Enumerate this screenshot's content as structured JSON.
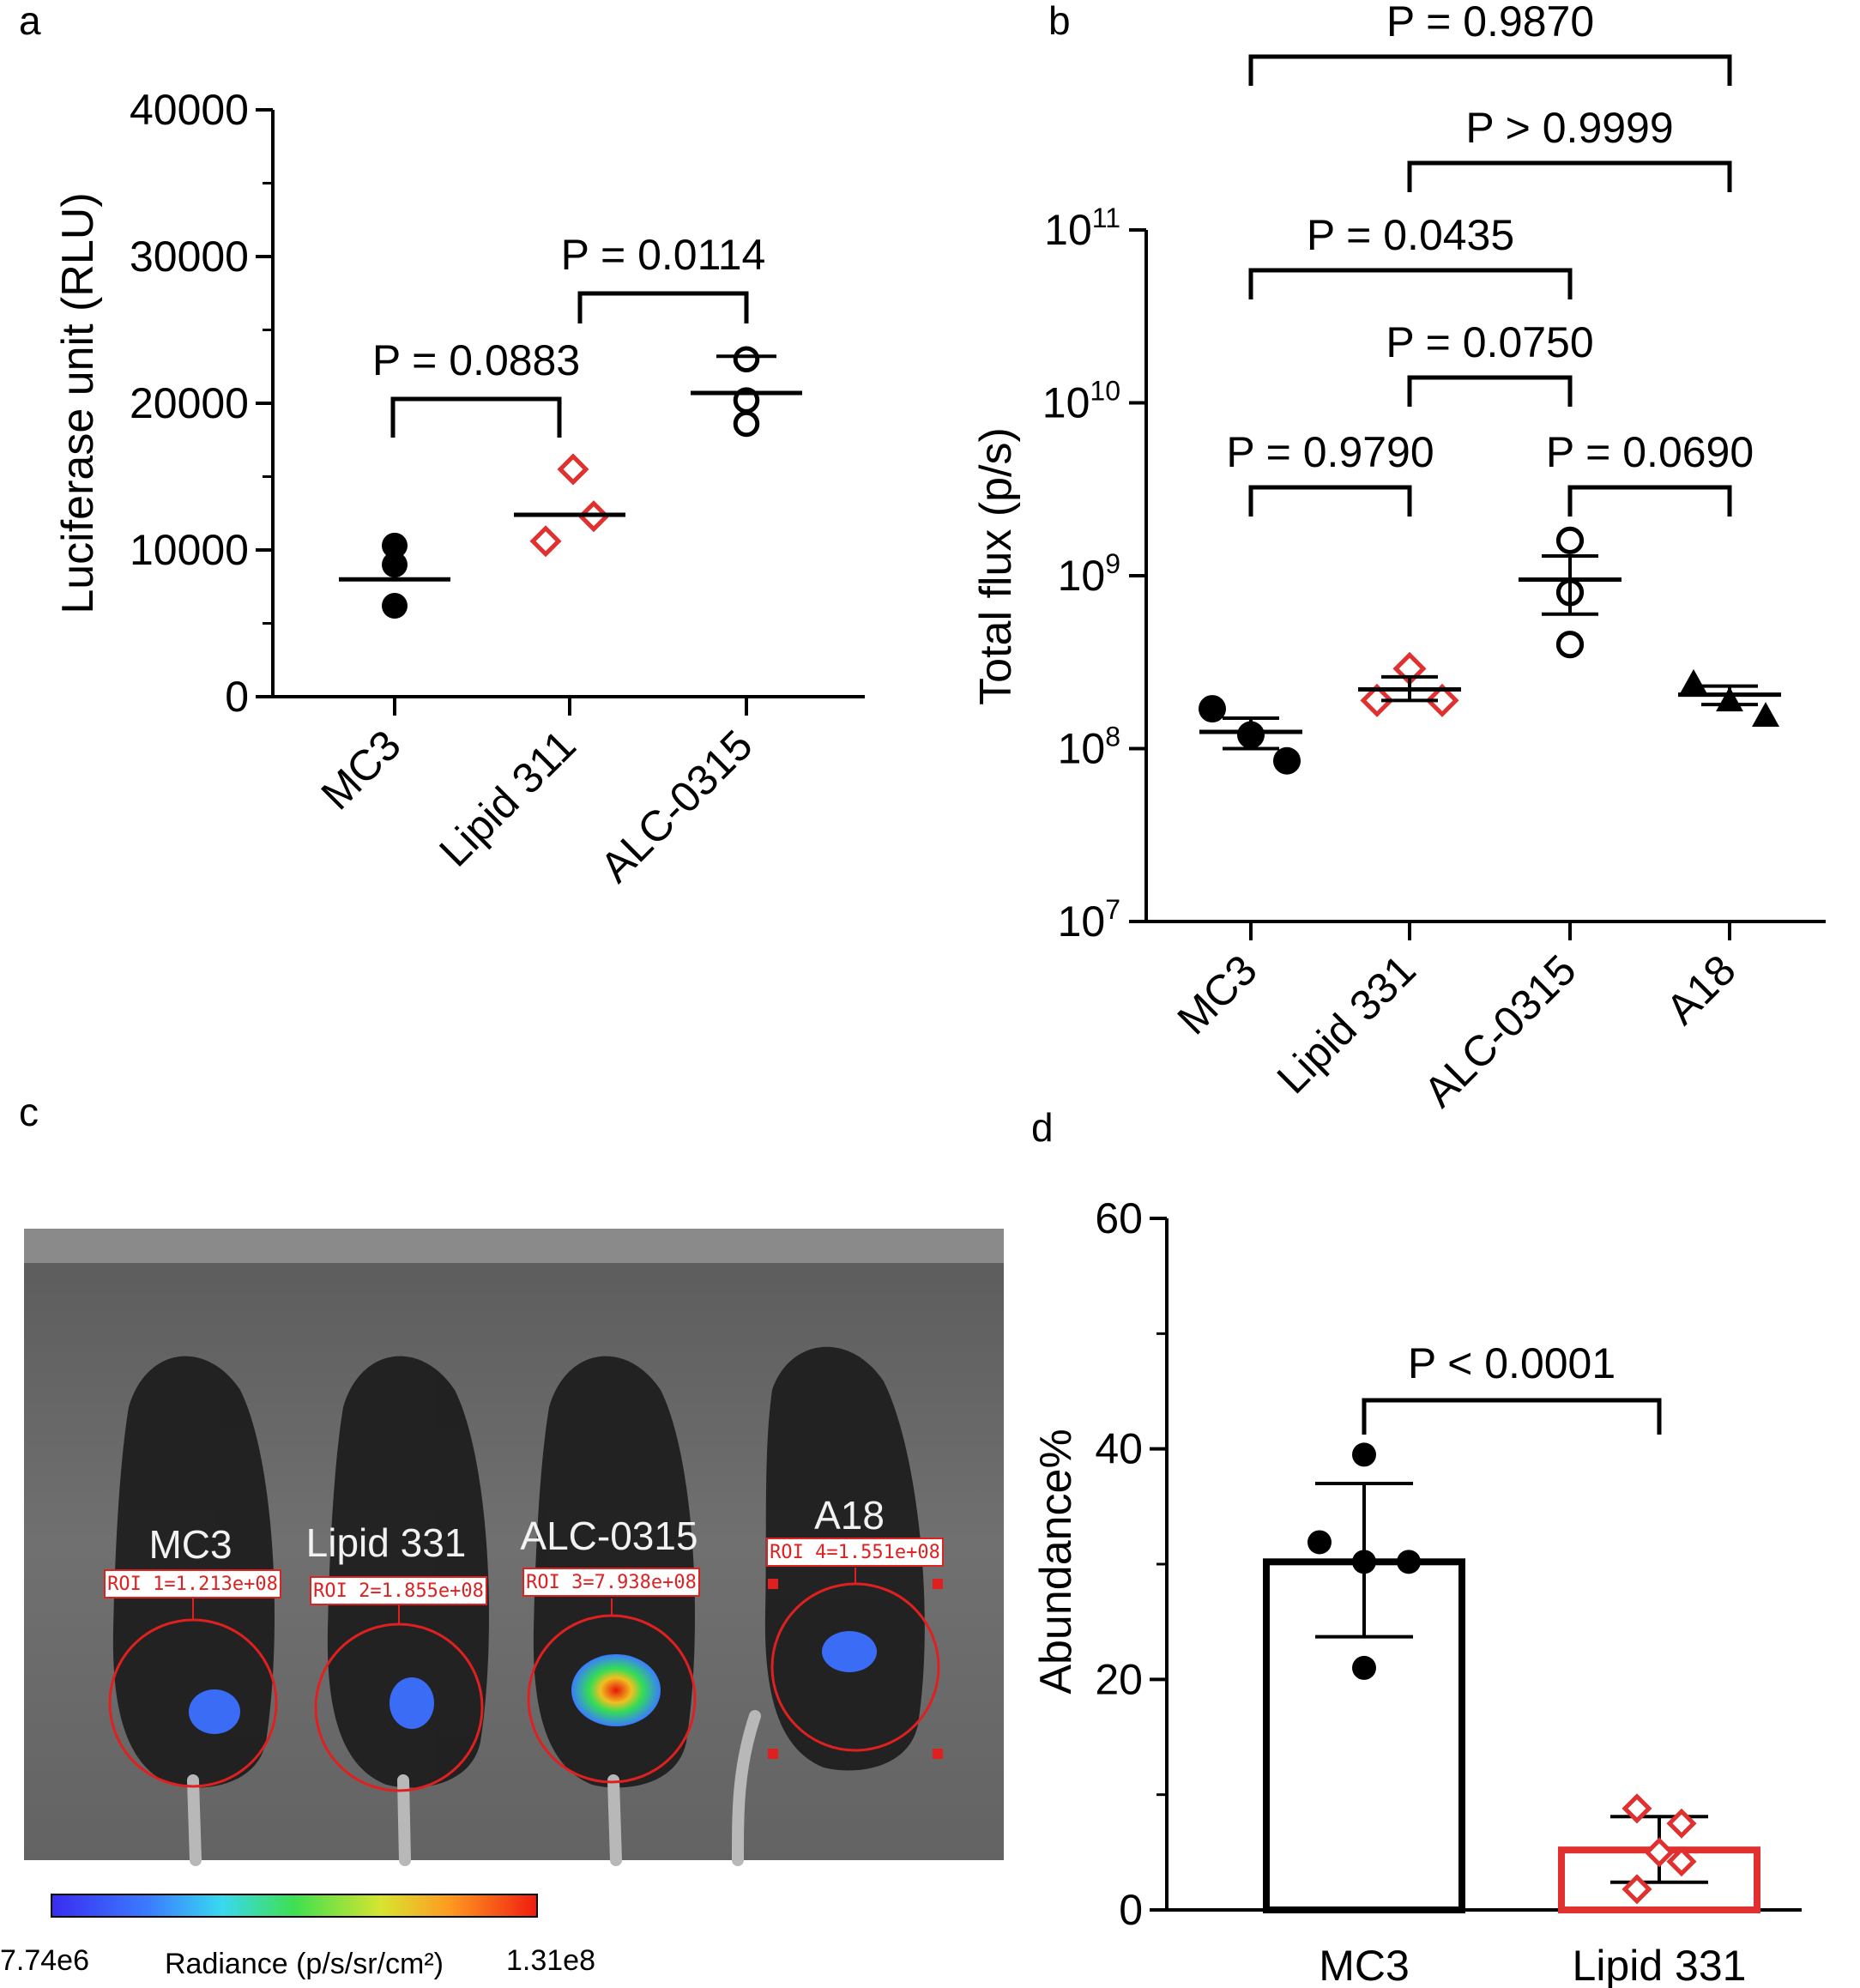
{
  "panels": {
    "a": "a",
    "b": "b",
    "c": "c",
    "d": "d"
  },
  "chart_data": [
    {
      "panel": "a",
      "type": "scatter",
      "ylabel": "Luciferase unit (RLU)",
      "xlabel": "",
      "ylim": [
        0,
        40000
      ],
      "yticks": [
        0,
        10000,
        20000,
        30000,
        40000
      ],
      "yticklabels": [
        "0",
        "10000",
        "20000",
        "30000",
        "40000"
      ],
      "categories": [
        "MC3",
        "Lipid 311",
        "ALC-0315"
      ],
      "series": [
        {
          "category": "MC3",
          "marker": "filled-circle",
          "color": "#000000",
          "points": [
            10300,
            9000,
            6200
          ],
          "mean": 8000
        },
        {
          "category": "Lipid 311",
          "marker": "open-diamond",
          "color": "#e03030",
          "points": [
            15500,
            12300,
            10600
          ],
          "mean": 12400
        },
        {
          "category": "ALC-0315",
          "marker": "open-circle",
          "color": "#000000",
          "points": [
            23000,
            20200,
            18600
          ],
          "mean": 20700
        }
      ],
      "comparisons": [
        {
          "from": "MC3",
          "to": "Lipid 311",
          "label": "P = 0.0883"
        },
        {
          "from": "Lipid 311",
          "to": "ALC-0315",
          "label": "P = 0.0114"
        }
      ]
    },
    {
      "panel": "b",
      "type": "scatter",
      "scale": "log",
      "ylabel": "Total flux (p/s)",
      "xlabel": "",
      "ylim": [
        10000000.0,
        100000000000.0
      ],
      "yticks": [
        {
          "base": "10",
          "exp": "7",
          "value": 10000000.0
        },
        {
          "base": "10",
          "exp": "8",
          "value": 100000000.0
        },
        {
          "base": "10",
          "exp": "9",
          "value": 1000000000.0
        },
        {
          "base": "10",
          "exp": "10",
          "value": 10000000000.0
        },
        {
          "base": "10",
          "exp": "11",
          "value": 100000000000.0
        }
      ],
      "categories": [
        "MC3",
        "Lipid 331",
        "ALC-0315",
        "A18"
      ],
      "series": [
        {
          "category": "MC3",
          "marker": "filled-circle",
          "color": "#000000",
          "points": [
            170000000.0,
            120000000.0,
            85000000.0
          ],
          "mean": 125000000.0,
          "err": [
            100000000.0,
            150000000.0
          ]
        },
        {
          "category": "Lipid 331",
          "marker": "open-diamond",
          "color": "#e03030",
          "points": [
            290000000.0,
            190000000.0,
            190000000.0
          ],
          "mean": 220000000.0,
          "err": [
            190000000.0,
            260000000.0
          ]
        },
        {
          "category": "ALC-0315",
          "marker": "open-circle",
          "color": "#000000",
          "points": [
            1600000000.0,
            800000000.0,
            400000000.0
          ],
          "mean": 950000000.0,
          "err": [
            600000000.0,
            1300000000.0
          ]
        },
        {
          "category": "A18",
          "marker": "filled-triangle",
          "color": "#000000",
          "points": [
            240000000.0,
            190000000.0,
            155000000.0
          ],
          "mean": 205000000.0,
          "err": [
            180000000.0,
            230000000.0
          ]
        }
      ],
      "comparisons": [
        {
          "from": "MC3",
          "to": "A18",
          "label": "P = 0.9870"
        },
        {
          "from": "Lipid 331",
          "to": "A18",
          "label": "P > 0.9999"
        },
        {
          "from": "MC3",
          "to": "ALC-0315",
          "label": "P = 0.0435"
        },
        {
          "from": "Lipid 331",
          "to": "ALC-0315",
          "label": "P = 0.0750"
        },
        {
          "from": "MC3",
          "to": "Lipid 331",
          "label": "P = 0.9790"
        },
        {
          "from": "ALC-0315",
          "to": "A18",
          "label": "P = 0.0690"
        }
      ]
    },
    {
      "panel": "d",
      "type": "bar",
      "ylabel": "Abundance%",
      "xlabel": "",
      "ylim": [
        0,
        60
      ],
      "yticks": [
        0,
        20,
        40,
        60
      ],
      "yticklabels": [
        "0",
        "20",
        "40",
        "60"
      ],
      "categories": [
        "MC3",
        "Lipid 331"
      ],
      "series": [
        {
          "category": "MC3",
          "color": "#000000",
          "marker": "filled-circle",
          "value": 30.2,
          "err": [
            23.7,
            37.0
          ],
          "points": [
            39.5,
            31.9,
            30.2,
            30.2,
            21.0
          ]
        },
        {
          "category": "Lipid 331",
          "color": "#e03030",
          "marker": "open-diamond",
          "value": 5.2,
          "err": [
            2.4,
            8.1
          ],
          "points": [
            8.8,
            7.5,
            5.0,
            4.2,
            1.8
          ]
        }
      ],
      "comparisons": [
        {
          "from": "MC3",
          "to": "Lipid 331",
          "label": "P < 0.0001"
        }
      ]
    }
  ],
  "imaging": {
    "mice": [
      {
        "name": "MC3",
        "roi": "ROI 1=1.213e+08"
      },
      {
        "name": "Lipid 331",
        "roi": "ROI 2=1.855e+08"
      },
      {
        "name": "ALC-0315",
        "roi": "ROI 3=7.938e+08"
      },
      {
        "name": "A18",
        "roi": "ROI 4=1.551e+08"
      }
    ],
    "colorbar": {
      "min": "7.74e6",
      "max": "1.31e8",
      "label": "Radiance (p/s/sr/cm²)"
    }
  }
}
